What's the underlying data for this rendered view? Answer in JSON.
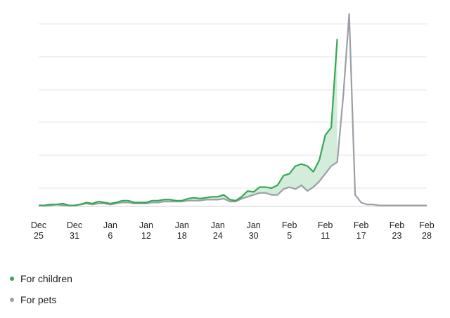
{
  "chart_data": {
    "type": "area",
    "x_ticks": [
      {
        "l1": "Dec",
        "l2": "25",
        "i": 0
      },
      {
        "l1": "Dec",
        "l2": "31",
        "i": 6
      },
      {
        "l1": "Jan",
        "l2": "6",
        "i": 12
      },
      {
        "l1": "Jan",
        "l2": "12",
        "i": 18
      },
      {
        "l1": "Jan",
        "l2": "18",
        "i": 24
      },
      {
        "l1": "Jan",
        "l2": "24",
        "i": 30
      },
      {
        "l1": "Jan",
        "l2": "30",
        "i": 36
      },
      {
        "l1": "Feb",
        "l2": "5",
        "i": 42
      },
      {
        "l1": "Feb",
        "l2": "11",
        "i": 48
      },
      {
        "l1": "Feb",
        "l2": "17",
        "i": 54
      },
      {
        "l1": "Feb",
        "l2": "23",
        "i": 60
      },
      {
        "l1": "Feb",
        "l2": "28",
        "i": 65
      }
    ],
    "ylim": [
      0,
      100
    ],
    "grid": true,
    "legend_position": "bottom-left",
    "series": [
      {
        "name": "For children",
        "color": "#34a853",
        "values": [
          0.5,
          0.5,
          1,
          1,
          1.5,
          0.5,
          0.5,
          1,
          2,
          1.5,
          2.5,
          2,
          1.5,
          2,
          3,
          3,
          2,
          2,
          2,
          3,
          3,
          3.5,
          3.5,
          3,
          3,
          4,
          4.5,
          4,
          4.5,
          5,
          5,
          6,
          3.5,
          3,
          5,
          8,
          7.5,
          10,
          10,
          9.5,
          11,
          16,
          17,
          21,
          22,
          21,
          18,
          24,
          37,
          41,
          87,
          0,
          0,
          0,
          0,
          0,
          0,
          0,
          0,
          0,
          0,
          0,
          0,
          0,
          0,
          0
        ]
      },
      {
        "name": "For pets",
        "color": "#9aa0a6",
        "values": [
          0.5,
          0.5,
          0.5,
          1,
          0.5,
          0.5,
          0.5,
          1,
          1.5,
          1,
          1.5,
          1.5,
          1,
          1.5,
          2,
          2,
          1.5,
          1.5,
          1.5,
          2,
          2,
          2.5,
          2.5,
          2.5,
          2.5,
          3,
          3,
          3,
          3.5,
          3.5,
          3.5,
          4,
          2.5,
          2.5,
          4,
          5,
          6,
          7,
          7,
          6,
          6,
          9,
          10,
          9,
          11,
          8,
          10,
          13,
          17,
          21,
          23,
          57,
          100,
          6,
          2,
          1,
          1,
          0.5,
          0.5,
          0.5,
          0.5,
          0.5,
          0.5,
          0.5,
          0.5,
          0.5
        ]
      }
    ]
  },
  "legend": [
    {
      "label": "For children",
      "color": "#34a853"
    },
    {
      "label": "For pets",
      "color": "#9aa0a6"
    }
  ]
}
